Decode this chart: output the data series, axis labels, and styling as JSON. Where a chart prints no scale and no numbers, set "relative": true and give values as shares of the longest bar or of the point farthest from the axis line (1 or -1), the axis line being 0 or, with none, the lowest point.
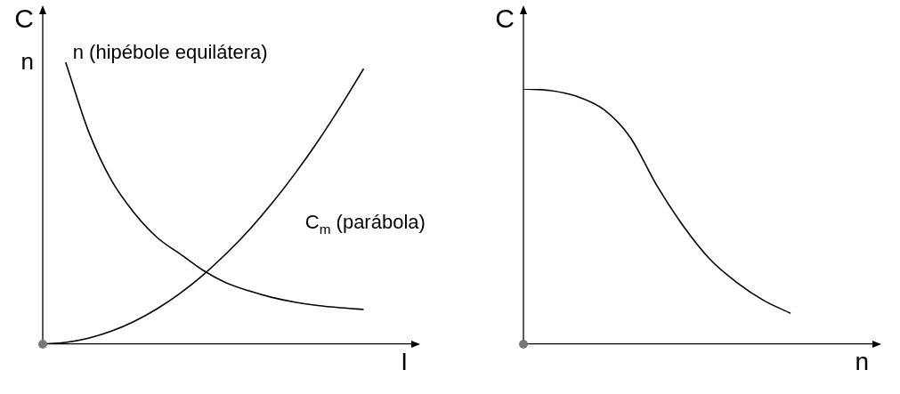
{
  "chart_data": [
    {
      "type": "line",
      "relative": true,
      "xlabel": "I",
      "ylabel": "C\nn",
      "categories": [
        null,
        null,
        null,
        null,
        null,
        null,
        null,
        null,
        null,
        null,
        null,
        null,
        null,
        null,
        null,
        null,
        null
      ],
      "legend": false,
      "grid": false,
      "marker": "none",
      "line_style": "solid",
      "series": [
        {
          "name": "n (hipébole equilátera)",
          "color": "#000000",
          "values": [
            null,
            1,
            0.754,
            0.58,
            0.464,
            0.377,
            0.319,
            0.261,
            0.217,
            0.188,
            0.165,
            0.148,
            0.136,
            0.128,
            0.122,
            null,
            null
          ]
        },
        {
          "name": "C$_{m}$ (parábola)",
          "color": "#000000",
          "values": [
            0,
            0.005,
            0.02,
            0.045,
            0.08,
            0.125,
            0.18,
            0.245,
            0.32,
            0.404,
            0.499,
            0.604,
            0.719,
            0.844,
            0.977,
            null,
            null
          ]
        }
      ]
    },
    {
      "type": "line",
      "relative": true,
      "xlabel": "n",
      "ylabel": "C",
      "categories": [
        null,
        null,
        null,
        null,
        null,
        null,
        null,
        null,
        null,
        null,
        null,
        null,
        null,
        null
      ],
      "legend": false,
      "grid": false,
      "marker": "none",
      "line_style": "solid",
      "series": [
        {
          "color": "#000000",
          "values": [
            1,
            0.994,
            0.971,
            0.92,
            0.81,
            0.62,
            0.46,
            0.33,
            0.24,
            0.17,
            0.12,
            null,
            null,
            null
          ]
        }
      ]
    }
  ]
}
